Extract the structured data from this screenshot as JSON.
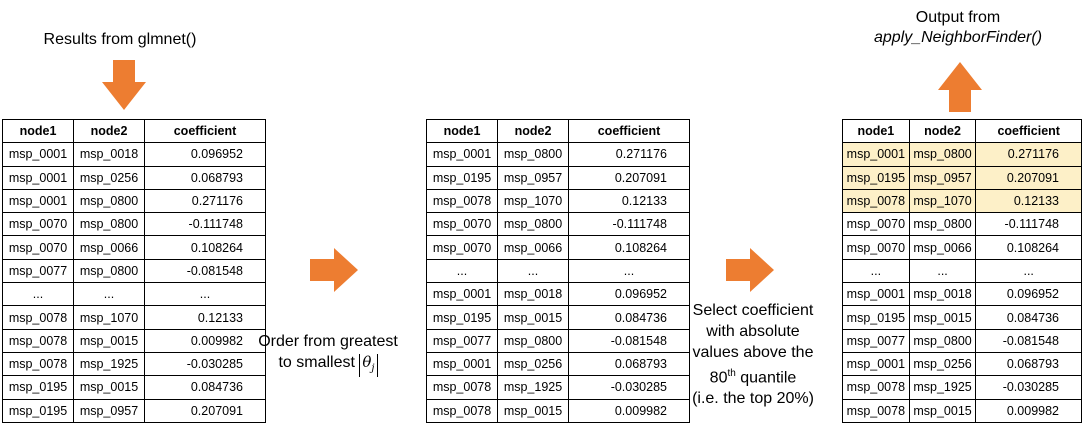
{
  "left": {
    "title": "Results from glmnet()",
    "headers": [
      "node1",
      "node2",
      "coefficient"
    ],
    "rows": [
      [
        "msp_0001",
        "msp_0018",
        "0.096952"
      ],
      [
        "msp_0001",
        "msp_0256",
        "0.068793"
      ],
      [
        "msp_0001",
        "msp_0800",
        "0.271176"
      ],
      [
        "msp_0070",
        "msp_0800",
        "-0.111748"
      ],
      [
        "msp_0070",
        "msp_0066",
        "0.108264"
      ],
      [
        "msp_0077",
        "msp_0800",
        "-0.081548"
      ],
      [
        "...",
        "...",
        "..."
      ],
      [
        "msp_0078",
        "msp_1070",
        "0.12133"
      ],
      [
        "msp_0078",
        "msp_0015",
        "0.009982"
      ],
      [
        "msp_0078",
        "msp_1925",
        "-0.030285"
      ],
      [
        "msp_0195",
        "msp_0015",
        "0.084736"
      ],
      [
        "msp_0195",
        "msp_0957",
        "0.207091"
      ]
    ]
  },
  "middle": {
    "label_line1": "Order from greatest",
    "label_line2": "to smallest",
    "theta_symbol": "θ",
    "theta_sub": "j",
    "headers": [
      "node1",
      "node2",
      "coefficient"
    ],
    "rows": [
      [
        "msp_0001",
        "msp_0800",
        "0.271176"
      ],
      [
        "msp_0195",
        "msp_0957",
        "0.207091"
      ],
      [
        "msp_0078",
        "msp_1070",
        "0.12133"
      ],
      [
        "msp_0070",
        "msp_0800",
        "-0.111748"
      ],
      [
        "msp_0070",
        "msp_0066",
        "0.108264"
      ],
      [
        "...",
        "...",
        "..."
      ],
      [
        "msp_0001",
        "msp_0018",
        "0.096952"
      ],
      [
        "msp_0195",
        "msp_0015",
        "0.084736"
      ],
      [
        "msp_0077",
        "msp_0800",
        "-0.081548"
      ],
      [
        "msp_0001",
        "msp_0256",
        "0.068793"
      ],
      [
        "msp_0078",
        "msp_1925",
        "-0.030285"
      ],
      [
        "msp_0078",
        "msp_0015",
        "0.009982"
      ]
    ]
  },
  "right": {
    "title_line1": "Output from",
    "title_line2": "apply_NeighborFinder()",
    "select_line1": "Select coefficient",
    "select_line2": "with absolute",
    "select_line3": "values above the",
    "select_line4_num": "80",
    "select_line4_sup": "th",
    "select_line4_rest": " quantile",
    "select_line5": "(i.e. the top 20%)",
    "highlight_rows": 3,
    "highlight_color": "#fdf0c8",
    "headers": [
      "node1",
      "node2",
      "coefficient"
    ],
    "rows": [
      [
        "msp_0001",
        "msp_0800",
        "0.271176"
      ],
      [
        "msp_0195",
        "msp_0957",
        "0.207091"
      ],
      [
        "msp_0078",
        "msp_1070",
        "0.12133"
      ],
      [
        "msp_0070",
        "msp_0800",
        "-0.111748"
      ],
      [
        "msp_0070",
        "msp_0066",
        "0.108264"
      ],
      [
        "...",
        "...",
        "..."
      ],
      [
        "msp_0001",
        "msp_0018",
        "0.096952"
      ],
      [
        "msp_0195",
        "msp_0015",
        "0.084736"
      ],
      [
        "msp_0077",
        "msp_0800",
        "-0.081548"
      ],
      [
        "msp_0001",
        "msp_0256",
        "0.068793"
      ],
      [
        "msp_0078",
        "msp_1925",
        "-0.030285"
      ],
      [
        "msp_0078",
        "msp_0015",
        "0.009982"
      ]
    ]
  },
  "colors": {
    "arrow": "#ed7d31",
    "border": "#000000"
  }
}
